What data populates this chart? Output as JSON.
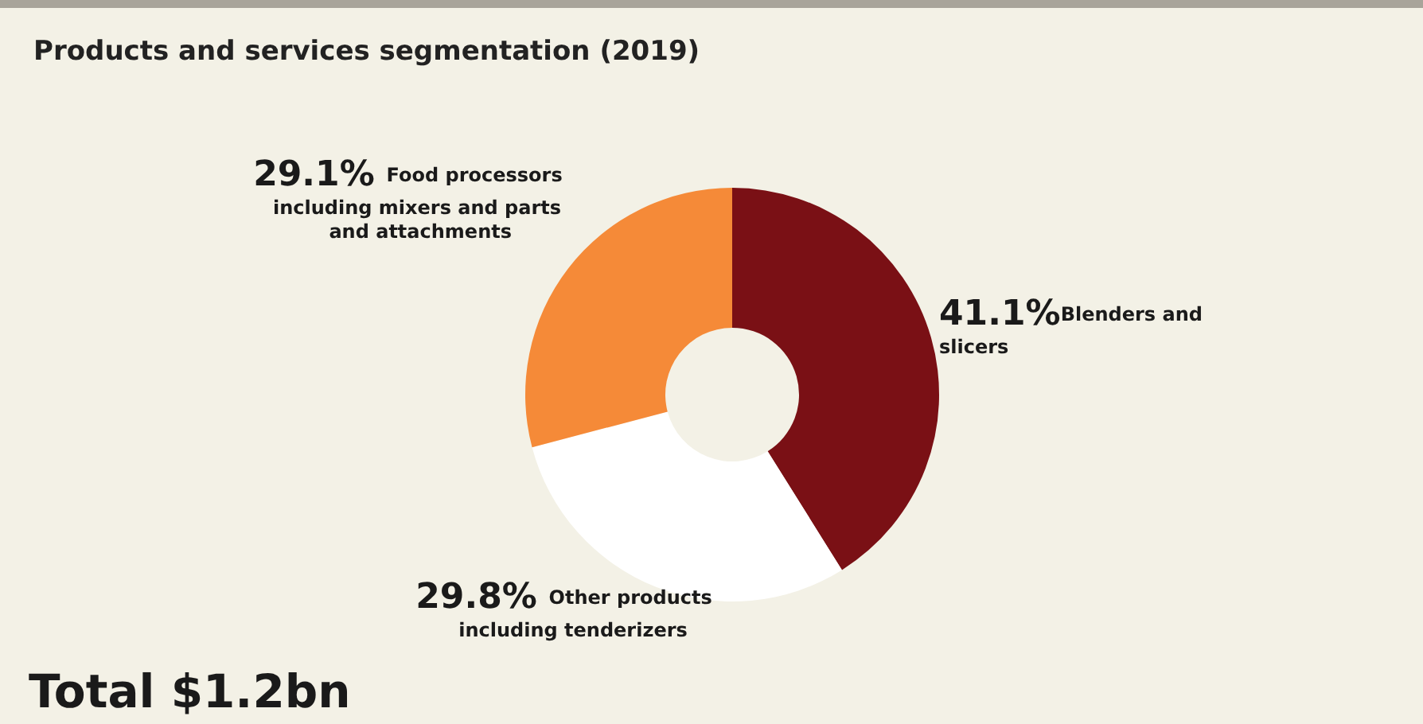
{
  "chart_data": {
    "type": "donut",
    "title": "Products and services segmentation (2019)",
    "categories": [
      "Blenders and slicers",
      "Other products including tenderizers",
      "Food processors including mixers and parts and attachments"
    ],
    "values": [
      41.1,
      29.8,
      29.1
    ],
    "value_labels": [
      "41.1%",
      "29.8%",
      "29.1%"
    ],
    "colors": [
      "#7a1015",
      "#ffffff",
      "#f58a38"
    ],
    "annotations": [
      "Total $1.2bn"
    ],
    "legend": false
  }
}
